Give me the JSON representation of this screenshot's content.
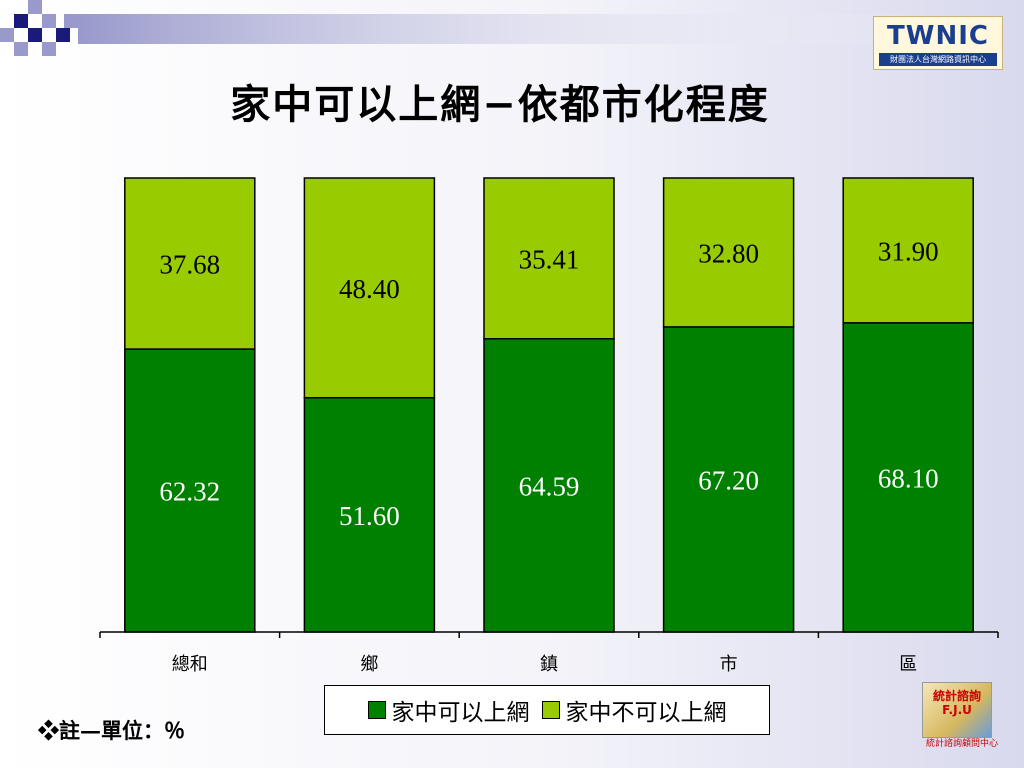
{
  "slide": {
    "title": "家中可以上網−依都市化程度",
    "note": "❖註—單位：％",
    "logo_top": {
      "brand": "TWNIC",
      "subtitle": "財團法人台灣網路資訊中心"
    },
    "logo_bottom": {
      "badge": "統計諮詢 F.J.U",
      "caption": "統計諮詢顧問中心"
    }
  },
  "colors": {
    "dark_green": "#008000",
    "light_green": "#99cc00",
    "deco_navy": "#1a1a7a",
    "deco_lilac": "#9999cc"
  },
  "chart_data": {
    "type": "bar",
    "stacked": true,
    "categories": [
      "總和",
      "鄉",
      "鎮",
      "市",
      "區"
    ],
    "series": [
      {
        "name": "家中可以上網",
        "color": "#008000",
        "values": [
          62.32,
          51.6,
          64.59,
          67.2,
          68.1
        ],
        "labels": [
          "62.32",
          "51.60",
          "64.59",
          "67.20",
          "68.10"
        ]
      },
      {
        "name": "家中不可以上網",
        "color": "#99cc00",
        "values": [
          37.68,
          48.4,
          35.41,
          32.8,
          31.9
        ],
        "labels": [
          "37.68",
          "48.40",
          "35.41",
          "32.80",
          "31.90"
        ]
      }
    ],
    "ylim": [
      0,
      100
    ],
    "unit": "％",
    "grid": false,
    "legend": "bottom"
  }
}
